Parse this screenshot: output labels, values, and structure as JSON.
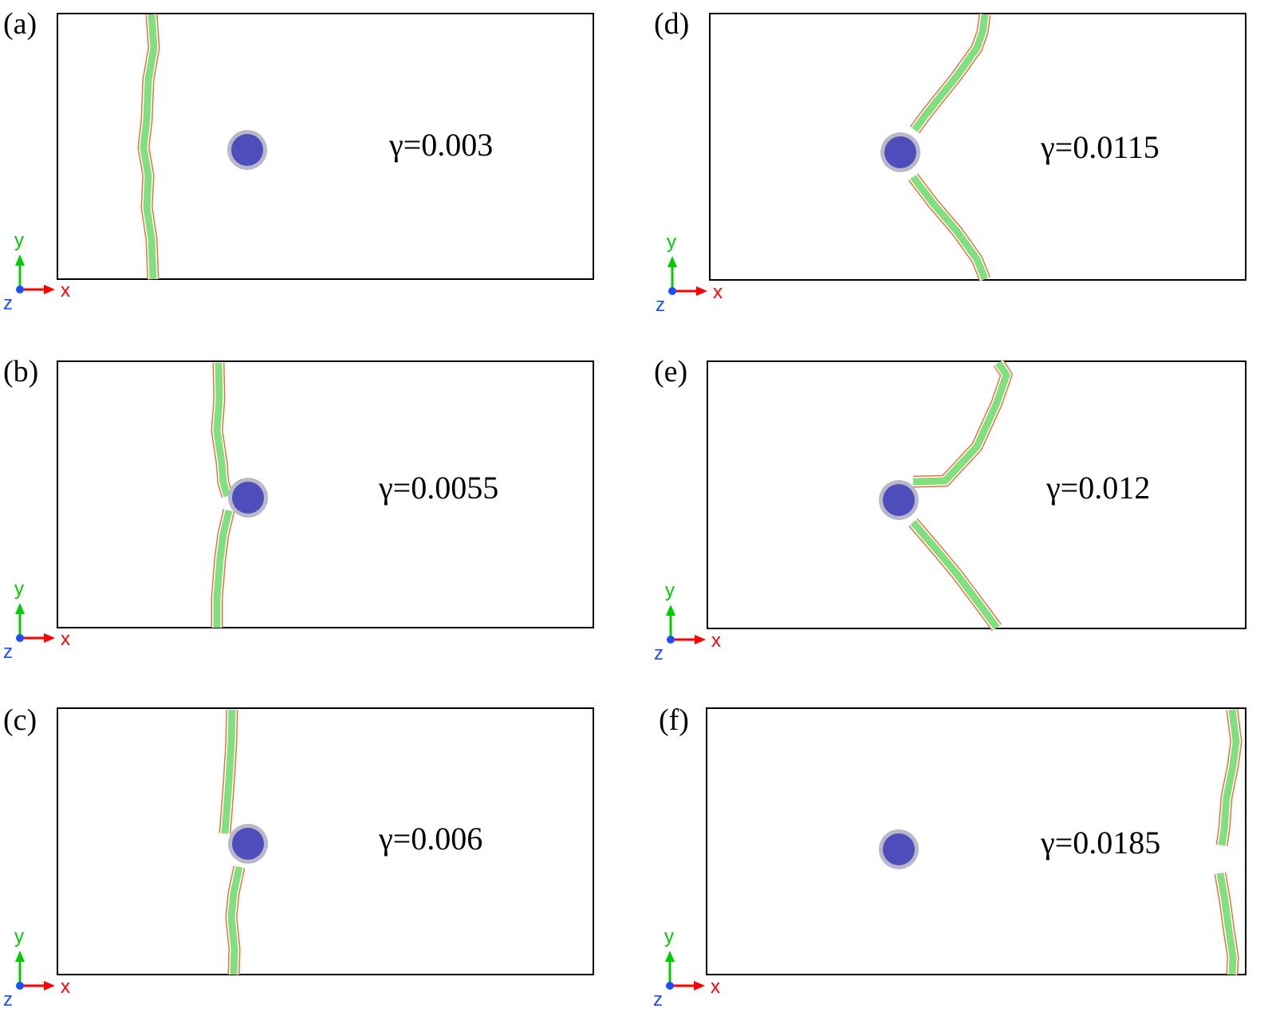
{
  "panels": [
    {
      "label": "(a)",
      "strain": "γ=0.003"
    },
    {
      "label": "(b)",
      "strain": "γ=0.0055"
    },
    {
      "label": "(c)",
      "strain": "γ=0.006"
    },
    {
      "label": "(d)",
      "strain": "γ=0.0115"
    },
    {
      "label": "(e)",
      "strain": "γ=0.012"
    },
    {
      "label": "(f)",
      "strain": "γ=0.0185"
    }
  ],
  "axes": {
    "x": "x",
    "y": "y",
    "z": "z"
  },
  "colors": {
    "dislocation": "#7ee07e",
    "outline": "#e8703a",
    "particle": "#3a3ab8",
    "x_axis": "#ff0000",
    "y_axis": "#00cc00",
    "z_axis": "#1a4fff"
  }
}
